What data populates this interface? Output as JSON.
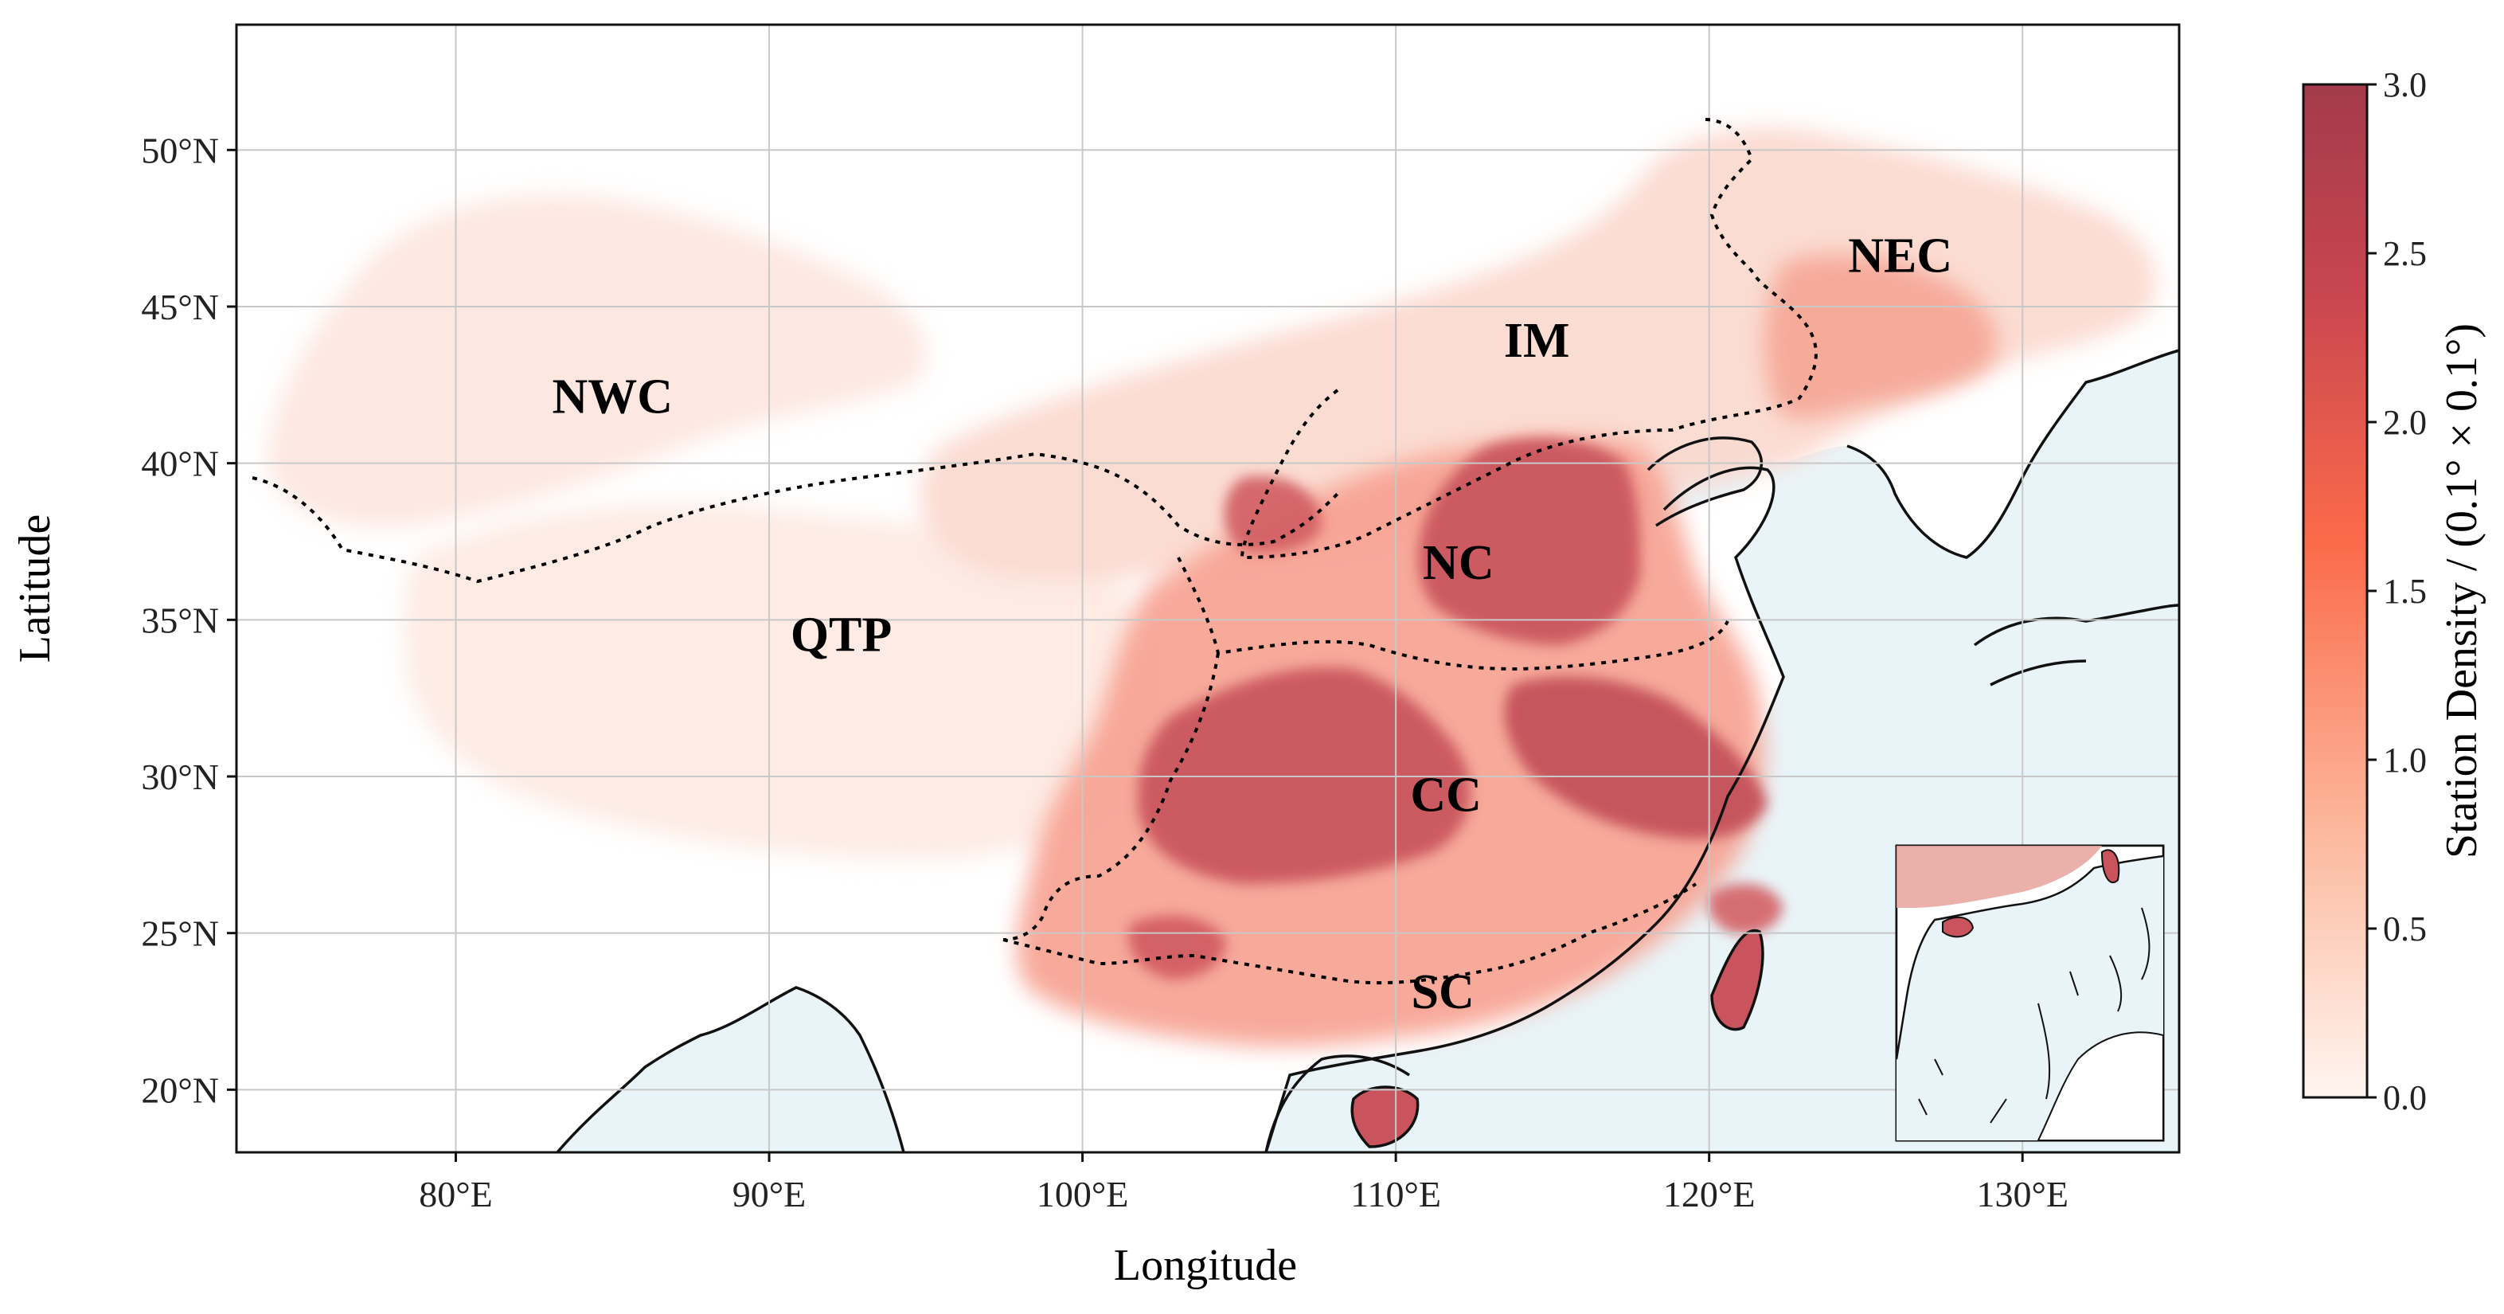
{
  "map": {
    "xlabel": "Longitude",
    "ylabel": "Latitude",
    "lon_range": [
      73,
      135
    ],
    "lat_range": [
      18,
      54
    ],
    "lon_ticks": [
      "80°E",
      "90°E",
      "100°E",
      "110°E",
      "120°E",
      "130°E"
    ],
    "lon_tick_values": [
      80,
      90,
      100,
      110,
      120,
      130
    ],
    "lat_ticks": [
      "20°N",
      "25°N",
      "30°N",
      "35°N",
      "40°N",
      "45°N",
      "50°N"
    ],
    "lat_tick_values": [
      20,
      25,
      30,
      35,
      40,
      45,
      50
    ],
    "regions": [
      {
        "label": "NWC",
        "lon": 85.0,
        "lat": 41.6
      },
      {
        "label": "IM",
        "lon": 114.5,
        "lat": 43.4
      },
      {
        "label": "NEC",
        "lon": 126.1,
        "lat": 46.1
      },
      {
        "label": "NC",
        "lon": 112.0,
        "lat": 36.3
      },
      {
        "label": "QTP",
        "lon": 92.3,
        "lat": 34.0
      },
      {
        "label": "CC",
        "lon": 111.6,
        "lat": 28.9
      },
      {
        "label": "SC",
        "lon": 111.5,
        "lat": 22.6
      }
    ],
    "colors": {
      "ocean": "#e9f4f8",
      "coastline": "#111111",
      "border": "#000000",
      "grid": "#c8c8c8"
    }
  },
  "colorbar": {
    "label": "Station Density / (0.1° × 0.1°)",
    "range": [
      0.0,
      3.0
    ],
    "ticks": [
      "0.0",
      "0.5",
      "1.0",
      "1.5",
      "2.0",
      "2.5",
      "3.0"
    ],
    "tick_values": [
      0.0,
      0.5,
      1.0,
      1.5,
      2.0,
      2.5,
      3.0
    ],
    "colormap": [
      "#fff5f0",
      "#fcbba1",
      "#fb6a4a",
      "#c74550",
      "#a33b4a"
    ]
  }
}
